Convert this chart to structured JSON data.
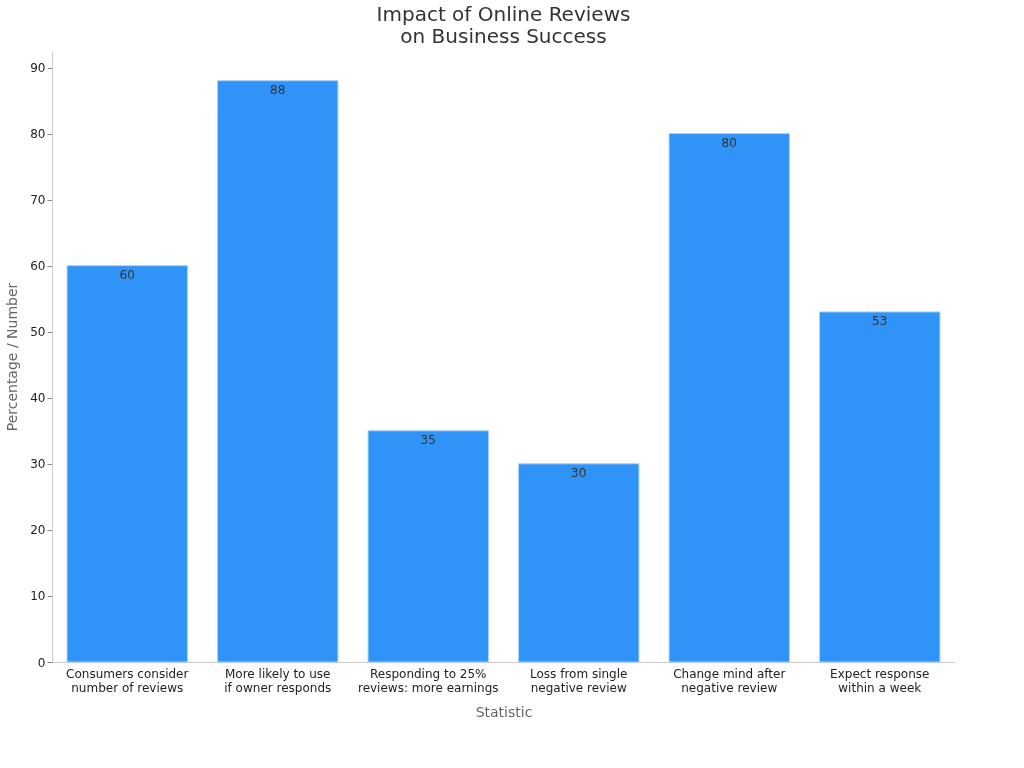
{
  "chart_data": {
    "type": "bar",
    "title": "Impact of Online Reviews\non Business Success",
    "xlabel": "Statistic",
    "ylabel": "Percentage / Number",
    "categories": [
      "Consumers consider\nnumber of reviews",
      "More likely to use\nif owner responds",
      "Responding to 25%\nreviews: more earnings",
      "Loss from single\nnegative review",
      "Change mind after\nnegative review",
      "Expect response\nwithin a week"
    ],
    "values": [
      60,
      88,
      35,
      30,
      80,
      53
    ],
    "color": "#2f93f7",
    "ylim": [
      0,
      92.5
    ],
    "yticks": [
      0,
      10,
      20,
      30,
      40,
      50,
      60,
      70,
      80,
      90
    ],
    "grid": false,
    "data_labels": true
  }
}
